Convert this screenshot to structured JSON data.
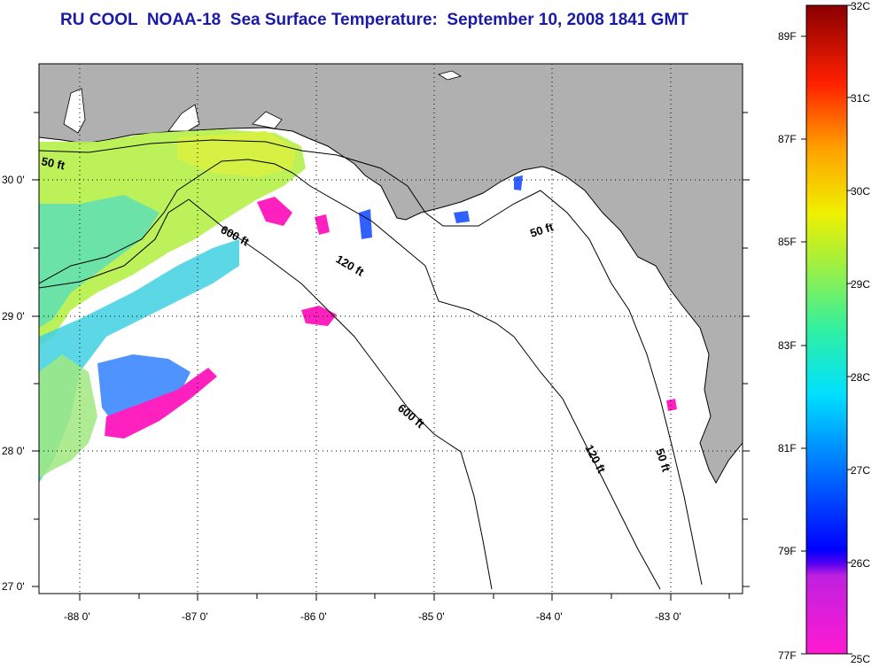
{
  "title": "RU COOL  NOAA-18  Sea Surface Temperature:  September 10, 2008 1841 GMT",
  "map": {
    "lat_labels": [
      "30 0'",
      "29 0'",
      "28 0'",
      "27 0'"
    ],
    "lon_labels": [
      "-88 0'",
      "-87 0'",
      "-86 0'",
      "-85 0'",
      "-84 0'",
      "-83 0'"
    ],
    "depth_contours": [
      "50 ft",
      "600 ft",
      "120 ft",
      "50 ft",
      "600 ft",
      "120 ft",
      "50 ft"
    ],
    "colors": {
      "land": "#b0b0b0",
      "water_cloud": "#ffffff",
      "grid": "#000000"
    }
  },
  "colorbar": {
    "celsius": [
      "32C",
      "31C",
      "30C",
      "29C",
      "28C",
      "27C",
      "26C",
      "25C"
    ],
    "fahrenheit": [
      "89F",
      "87F",
      "85F",
      "83F",
      "81F",
      "79F",
      "77F"
    ]
  }
}
